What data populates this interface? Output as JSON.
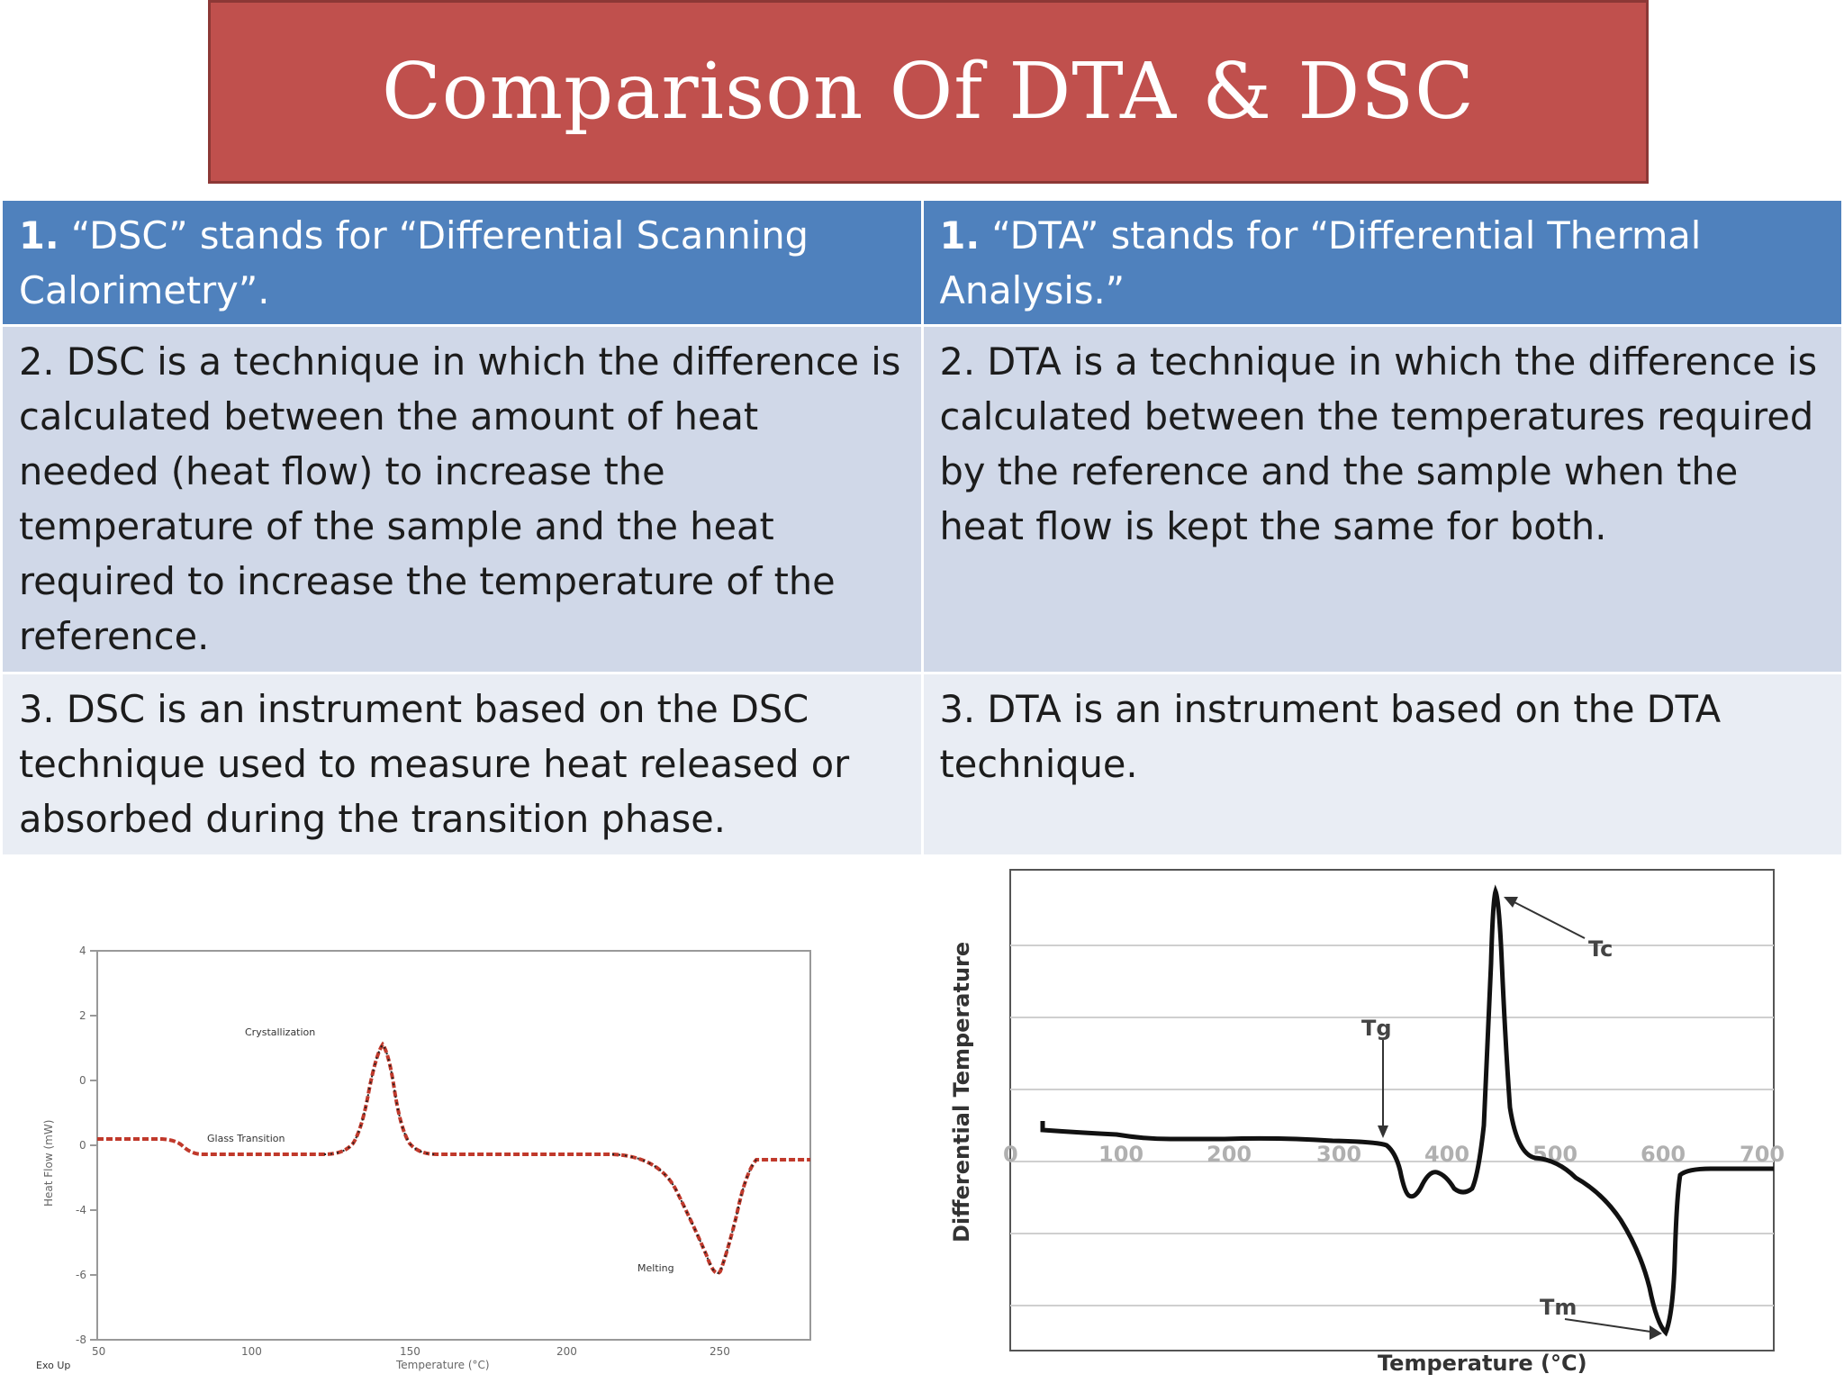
{
  "title": "Comparison Of DTA & DSC",
  "rows": [
    {
      "dsc_num": "1.",
      "dsc_text": "“DSC” stands for “Differential Scanning Calorimetry”.",
      "dta_num": "1.",
      "dta_text": "“DTA” stands for “Differential Thermal Analysis.”"
    },
    {
      "dsc_text": "2. DSC is a technique in which the difference is calculated between the amount of heat needed (heat flow) to increase the temperature of the sample and the heat required to increase the temperature of the reference.",
      "dta_text": "2. DTA is a technique in which the difference is calculated between the temperatures required by the reference and the sample when the heat flow is kept the same for both."
    },
    {
      "dsc_text": "3. DSC is an instrument based on the DSC technique used to measure heat released or absorbed during the transition phase.",
      "dta_text": "3. DTA is an instrument based on the DTA technique."
    }
  ],
  "dsc_graph": {
    "y_ticks": [
      "4",
      "2",
      "0",
      "0",
      "-4",
      "-6",
      "-8"
    ],
    "x_ticks": [
      "50",
      "100",
      "150",
      "200",
      "250"
    ],
    "ylabel": "Heat Flow (mW)",
    "xlabel": "Temperature (°C)",
    "annotations": {
      "crystallization": "Crystallization",
      "glass": "Glass Transition",
      "melting": "Melting",
      "corner": "Exo Up"
    },
    "curve_color": "#c0392b"
  },
  "dta_graph": {
    "x_ticks": [
      "0",
      "100",
      "200",
      "300",
      "400",
      "500",
      "600",
      "700"
    ],
    "xlabel": "Temperature (°C)",
    "ylabel": "Differential Temperature",
    "annotations": {
      "tg": "Tg",
      "tc": "Tc",
      "tm": "Tm"
    }
  }
}
